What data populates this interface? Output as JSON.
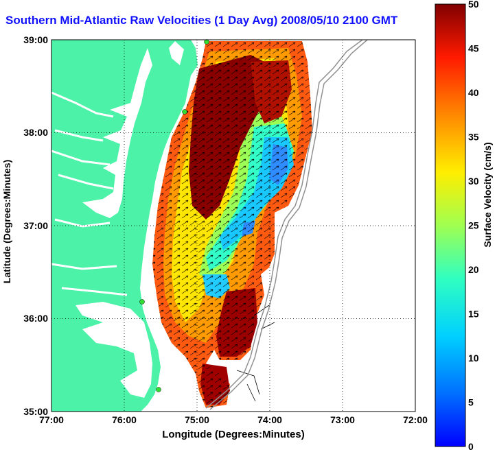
{
  "title": "Southern Mid-Atlantic Raw Velocities (1 Day Avg) 2008/05/10 2100 GMT",
  "axes": {
    "xlabel": "Longitude (Degrees:Minutes)",
    "ylabel": "Latitude (Degrees:Minutes)",
    "x_ticks": [
      "77:00",
      "76:00",
      "75:00",
      "74:00",
      "73:00",
      "72:00"
    ],
    "y_ticks": [
      "39:00",
      "38:00",
      "37:00",
      "36:00",
      "35:00"
    ],
    "xlim": [
      -77,
      -72
    ],
    "ylim": [
      35,
      39
    ],
    "grid": "dotted"
  },
  "colorbar": {
    "label": "Surface Velocity (cm/s)",
    "ticks": [
      "50",
      "45",
      "40",
      "35",
      "30",
      "25",
      "20",
      "15",
      "10",
      "5",
      "0"
    ],
    "range": [
      0,
      50
    ],
    "colormap": "jet"
  },
  "colors": {
    "land": "#4cf2a8",
    "water": "#ffffff",
    "title": "#1010ff",
    "stations": "#33dd33",
    "isobath": "#909090"
  }
}
